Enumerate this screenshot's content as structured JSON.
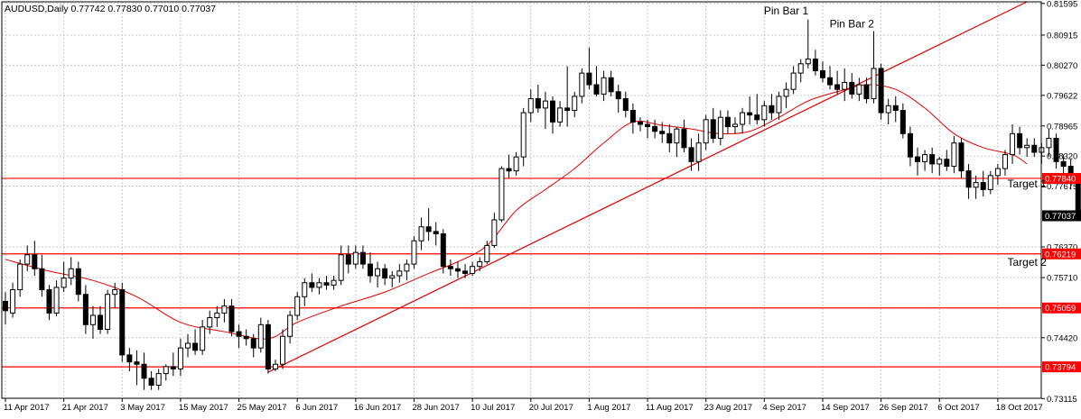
{
  "chart_data": {
    "type": "candlestick",
    "symbol_header": "AUDUSD,Daily  0.77742 0.77830 0.77010 0.77037",
    "title": "",
    "xlabel": "",
    "ylabel": "",
    "ylim": [
      0.7312,
      0.8163
    ],
    "grid": true,
    "y_ticks": [
      "0.81595",
      "0.80915",
      "0.80270",
      "0.79622",
      "0.78965",
      "0.78320",
      "0.77675",
      "0.76370",
      "0.75710",
      "0.74420",
      "0.73115"
    ],
    "x_tick_labels": [
      {
        "label": "11 Apr 2017",
        "index": 0
      },
      {
        "label": "21 Apr 2017",
        "index": 8
      },
      {
        "label": "3 May 2017",
        "index": 16
      },
      {
        "label": "15 May 2017",
        "index": 24
      },
      {
        "label": "25 May 2017",
        "index": 32
      },
      {
        "label": "6 Jun 2017",
        "index": 40
      },
      {
        "label": "16 Jun 2017",
        "index": 48
      },
      {
        "label": "28 Jun 2017",
        "index": 56
      },
      {
        "label": "10 Jul 2017",
        "index": 64
      },
      {
        "label": "20 Jul 2017",
        "index": 72
      },
      {
        "label": "1 Aug 2017",
        "index": 80
      },
      {
        "label": "11 Aug 2017",
        "index": 88
      },
      {
        "label": "23 Aug 2017",
        "index": 96
      },
      {
        "label": "4 Sep 2017",
        "index": 104
      },
      {
        "label": "14 Sep 2017",
        "index": 112
      },
      {
        "label": "26 Sep 2017",
        "index": 120
      },
      {
        "label": "6 Oct 2017",
        "index": 128
      },
      {
        "label": "18 Oct 2017",
        "index": 136
      }
    ],
    "levels": [
      {
        "value": 0.7784,
        "label": "0.77840"
      },
      {
        "value": 0.76219,
        "label": "0.76219"
      },
      {
        "value": 0.75059,
        "label": "0.75059"
      },
      {
        "value": 0.73794,
        "label": "0.73794"
      }
    ],
    "current_price": {
      "value": 0.77037,
      "label": "0.77037"
    },
    "trendline": {
      "start": {
        "index": 36,
        "price": 0.7368
      },
      "end": {
        "index": 140,
        "price": 0.8163
      }
    },
    "annotations": [
      {
        "text": "Pin Bar 1",
        "index": 107,
        "price": 0.8136
      },
      {
        "text": "Pin Bar 2",
        "index": 116,
        "price": 0.8108
      },
      {
        "text": "Target 1",
        "index": 140,
        "price": 0.7765
      },
      {
        "text": "Target 2",
        "index": 140,
        "price": 0.7596
      }
    ],
    "ma_anchors": [
      [
        0,
        0.761
      ],
      [
        6,
        0.7585
      ],
      [
        12,
        0.7565
      ],
      [
        18,
        0.753
      ],
      [
        24,
        0.7475
      ],
      [
        30,
        0.7455
      ],
      [
        36,
        0.744
      ],
      [
        40,
        0.7475
      ],
      [
        46,
        0.751
      ],
      [
        52,
        0.754
      ],
      [
        58,
        0.758
      ],
      [
        62,
        0.7605
      ],
      [
        66,
        0.764
      ],
      [
        70,
        0.7715
      ],
      [
        74,
        0.776
      ],
      [
        78,
        0.7805
      ],
      [
        82,
        0.786
      ],
      [
        86,
        0.7905
      ],
      [
        90,
        0.7898
      ],
      [
        94,
        0.789
      ],
      [
        98,
        0.788
      ],
      [
        102,
        0.7885
      ],
      [
        106,
        0.7915
      ],
      [
        110,
        0.795
      ],
      [
        114,
        0.797
      ],
      [
        118,
        0.7985
      ],
      [
        122,
        0.7975
      ],
      [
        126,
        0.7935
      ],
      [
        130,
        0.788
      ],
      [
        134,
        0.785
      ],
      [
        138,
        0.7835
      ],
      [
        140,
        0.7815
      ]
    ],
    "series": [
      {
        "o": 0.752,
        "h": 0.754,
        "l": 0.747,
        "c": 0.75
      },
      {
        "o": 0.7495,
        "h": 0.756,
        "l": 0.7485,
        "c": 0.7545
      },
      {
        "o": 0.7545,
        "h": 0.761,
        "l": 0.753,
        "c": 0.76
      },
      {
        "o": 0.76,
        "h": 0.764,
        "l": 0.7585,
        "c": 0.762
      },
      {
        "o": 0.762,
        "h": 0.765,
        "l": 0.7575,
        "c": 0.759
      },
      {
        "o": 0.759,
        "h": 0.762,
        "l": 0.753,
        "c": 0.7545
      },
      {
        "o": 0.7545,
        "h": 0.7555,
        "l": 0.748,
        "c": 0.7495
      },
      {
        "o": 0.7495,
        "h": 0.7565,
        "l": 0.7488,
        "c": 0.755
      },
      {
        "o": 0.755,
        "h": 0.7605,
        "l": 0.754,
        "c": 0.757
      },
      {
        "o": 0.757,
        "h": 0.7615,
        "l": 0.7555,
        "c": 0.759
      },
      {
        "o": 0.759,
        "h": 0.7605,
        "l": 0.752,
        "c": 0.7535
      },
      {
        "o": 0.7535,
        "h": 0.7555,
        "l": 0.745,
        "c": 0.747
      },
      {
        "o": 0.747,
        "h": 0.751,
        "l": 0.744,
        "c": 0.749
      },
      {
        "o": 0.749,
        "h": 0.751,
        "l": 0.745,
        "c": 0.746
      },
      {
        "o": 0.746,
        "h": 0.7545,
        "l": 0.745,
        "c": 0.7535
      },
      {
        "o": 0.7535,
        "h": 0.756,
        "l": 0.7505,
        "c": 0.7545
      },
      {
        "o": 0.7545,
        "h": 0.756,
        "l": 0.739,
        "c": 0.7405
      },
      {
        "o": 0.7405,
        "h": 0.742,
        "l": 0.737,
        "c": 0.739
      },
      {
        "o": 0.739,
        "h": 0.7415,
        "l": 0.734,
        "c": 0.7385
      },
      {
        "o": 0.7385,
        "h": 0.741,
        "l": 0.733,
        "c": 0.7355
      },
      {
        "o": 0.7355,
        "h": 0.737,
        "l": 0.733,
        "c": 0.734
      },
      {
        "o": 0.734,
        "h": 0.7375,
        "l": 0.733,
        "c": 0.7365
      },
      {
        "o": 0.7365,
        "h": 0.7385,
        "l": 0.735,
        "c": 0.738
      },
      {
        "o": 0.738,
        "h": 0.741,
        "l": 0.736,
        "c": 0.7375
      },
      {
        "o": 0.7375,
        "h": 0.744,
        "l": 0.736,
        "c": 0.742
      },
      {
        "o": 0.742,
        "h": 0.745,
        "l": 0.74,
        "c": 0.743
      },
      {
        "o": 0.743,
        "h": 0.746,
        "l": 0.7405,
        "c": 0.7415
      },
      {
        "o": 0.7415,
        "h": 0.748,
        "l": 0.7405,
        "c": 0.7465
      },
      {
        "o": 0.7465,
        "h": 0.75,
        "l": 0.745,
        "c": 0.7485
      },
      {
        "o": 0.7485,
        "h": 0.751,
        "l": 0.7465,
        "c": 0.7495
      },
      {
        "o": 0.7495,
        "h": 0.7525,
        "l": 0.7475,
        "c": 0.751
      },
      {
        "o": 0.751,
        "h": 0.7525,
        "l": 0.7445,
        "c": 0.7455
      },
      {
        "o": 0.7455,
        "h": 0.747,
        "l": 0.742,
        "c": 0.7445
      },
      {
        "o": 0.7445,
        "h": 0.746,
        "l": 0.7425,
        "c": 0.744
      },
      {
        "o": 0.744,
        "h": 0.745,
        "l": 0.74,
        "c": 0.742
      },
      {
        "o": 0.742,
        "h": 0.7485,
        "l": 0.741,
        "c": 0.747
      },
      {
        "o": 0.747,
        "h": 0.748,
        "l": 0.7365,
        "c": 0.7375
      },
      {
        "o": 0.7375,
        "h": 0.7395,
        "l": 0.737,
        "c": 0.7385
      },
      {
        "o": 0.7385,
        "h": 0.746,
        "l": 0.7375,
        "c": 0.7445
      },
      {
        "o": 0.7445,
        "h": 0.75,
        "l": 0.743,
        "c": 0.749
      },
      {
        "o": 0.749,
        "h": 0.754,
        "l": 0.748,
        "c": 0.753
      },
      {
        "o": 0.753,
        "h": 0.757,
        "l": 0.751,
        "c": 0.756
      },
      {
        "o": 0.756,
        "h": 0.758,
        "l": 0.754,
        "c": 0.755
      },
      {
        "o": 0.755,
        "h": 0.757,
        "l": 0.7535,
        "c": 0.756
      },
      {
        "o": 0.756,
        "h": 0.7575,
        "l": 0.7545,
        "c": 0.7555
      },
      {
        "o": 0.7555,
        "h": 0.7575,
        "l": 0.7545,
        "c": 0.7565
      },
      {
        "o": 0.7565,
        "h": 0.764,
        "l": 0.7555,
        "c": 0.762
      },
      {
        "o": 0.762,
        "h": 0.764,
        "l": 0.758,
        "c": 0.76
      },
      {
        "o": 0.76,
        "h": 0.764,
        "l": 0.759,
        "c": 0.7625
      },
      {
        "o": 0.7625,
        "h": 0.764,
        "l": 0.759,
        "c": 0.76
      },
      {
        "o": 0.76,
        "h": 0.7625,
        "l": 0.756,
        "c": 0.7575
      },
      {
        "o": 0.7575,
        "h": 0.7605,
        "l": 0.755,
        "c": 0.759
      },
      {
        "o": 0.759,
        "h": 0.76,
        "l": 0.7555,
        "c": 0.757
      },
      {
        "o": 0.757,
        "h": 0.7585,
        "l": 0.755,
        "c": 0.7575
      },
      {
        "o": 0.7575,
        "h": 0.76,
        "l": 0.756,
        "c": 0.7585
      },
      {
        "o": 0.7585,
        "h": 0.761,
        "l": 0.7565,
        "c": 0.76
      },
      {
        "o": 0.76,
        "h": 0.766,
        "l": 0.759,
        "c": 0.765
      },
      {
        "o": 0.765,
        "h": 0.77,
        "l": 0.763,
        "c": 0.768
      },
      {
        "o": 0.768,
        "h": 0.772,
        "l": 0.765,
        "c": 0.767
      },
      {
        "o": 0.767,
        "h": 0.769,
        "l": 0.764,
        "c": 0.7665
      },
      {
        "o": 0.7665,
        "h": 0.7675,
        "l": 0.758,
        "c": 0.7595
      },
      {
        "o": 0.7595,
        "h": 0.761,
        "l": 0.7575,
        "c": 0.759
      },
      {
        "o": 0.759,
        "h": 0.7605,
        "l": 0.757,
        "c": 0.7585
      },
      {
        "o": 0.7585,
        "h": 0.76,
        "l": 0.757,
        "c": 0.758
      },
      {
        "o": 0.758,
        "h": 0.7605,
        "l": 0.7575,
        "c": 0.7595
      },
      {
        "o": 0.7595,
        "h": 0.7615,
        "l": 0.7585,
        "c": 0.7605
      },
      {
        "o": 0.7605,
        "h": 0.765,
        "l": 0.76,
        "c": 0.764
      },
      {
        "o": 0.764,
        "h": 0.771,
        "l": 0.7635,
        "c": 0.7695
      },
      {
        "o": 0.7695,
        "h": 0.781,
        "l": 0.769,
        "c": 0.7805
      },
      {
        "o": 0.7805,
        "h": 0.7835,
        "l": 0.7785,
        "c": 0.78
      },
      {
        "o": 0.78,
        "h": 0.784,
        "l": 0.779,
        "c": 0.783
      },
      {
        "o": 0.783,
        "h": 0.7935,
        "l": 0.781,
        "c": 0.7925
      },
      {
        "o": 0.7925,
        "h": 0.7975,
        "l": 0.7905,
        "c": 0.7955
      },
      {
        "o": 0.7955,
        "h": 0.7985,
        "l": 0.7925,
        "c": 0.7935
      },
      {
        "o": 0.7935,
        "h": 0.797,
        "l": 0.789,
        "c": 0.795
      },
      {
        "o": 0.795,
        "h": 0.796,
        "l": 0.788,
        "c": 0.7905
      },
      {
        "o": 0.7905,
        "h": 0.795,
        "l": 0.7895,
        "c": 0.7935
      },
      {
        "o": 0.7935,
        "h": 0.8025,
        "l": 0.7895,
        "c": 0.793
      },
      {
        "o": 0.793,
        "h": 0.797,
        "l": 0.7915,
        "c": 0.796
      },
      {
        "o": 0.796,
        "h": 0.802,
        "l": 0.7945,
        "c": 0.801
      },
      {
        "o": 0.801,
        "h": 0.8065,
        "l": 0.7975,
        "c": 0.7985
      },
      {
        "o": 0.7985,
        "h": 0.8025,
        "l": 0.796,
        "c": 0.7965
      },
      {
        "o": 0.7965,
        "h": 0.8015,
        "l": 0.795,
        "c": 0.8
      },
      {
        "o": 0.8,
        "h": 0.8015,
        "l": 0.796,
        "c": 0.797
      },
      {
        "o": 0.797,
        "h": 0.7985,
        "l": 0.7925,
        "c": 0.7955
      },
      {
        "o": 0.7955,
        "h": 0.797,
        "l": 0.7915,
        "c": 0.793
      },
      {
        "o": 0.793,
        "h": 0.7945,
        "l": 0.788,
        "c": 0.7905
      },
      {
        "o": 0.7905,
        "h": 0.7915,
        "l": 0.7885,
        "c": 0.79
      },
      {
        "o": 0.79,
        "h": 0.791,
        "l": 0.787,
        "c": 0.7895
      },
      {
        "o": 0.7895,
        "h": 0.791,
        "l": 0.787,
        "c": 0.7885
      },
      {
        "o": 0.7885,
        "h": 0.7905,
        "l": 0.786,
        "c": 0.788
      },
      {
        "o": 0.788,
        "h": 0.79,
        "l": 0.784,
        "c": 0.786
      },
      {
        "o": 0.786,
        "h": 0.7895,
        "l": 0.783,
        "c": 0.789
      },
      {
        "o": 0.789,
        "h": 0.791,
        "l": 0.784,
        "c": 0.785
      },
      {
        "o": 0.785,
        "h": 0.787,
        "l": 0.78,
        "c": 0.782
      },
      {
        "o": 0.782,
        "h": 0.788,
        "l": 0.78,
        "c": 0.786
      },
      {
        "o": 0.786,
        "h": 0.792,
        "l": 0.7845,
        "c": 0.791
      },
      {
        "o": 0.791,
        "h": 0.7935,
        "l": 0.786,
        "c": 0.787
      },
      {
        "o": 0.787,
        "h": 0.793,
        "l": 0.7855,
        "c": 0.7915
      },
      {
        "o": 0.7915,
        "h": 0.793,
        "l": 0.788,
        "c": 0.7895
      },
      {
        "o": 0.7895,
        "h": 0.7915,
        "l": 0.788,
        "c": 0.79
      },
      {
        "o": 0.79,
        "h": 0.7935,
        "l": 0.788,
        "c": 0.7925
      },
      {
        "o": 0.7925,
        "h": 0.796,
        "l": 0.79,
        "c": 0.792
      },
      {
        "o": 0.792,
        "h": 0.7965,
        "l": 0.79,
        "c": 0.791
      },
      {
        "o": 0.791,
        "h": 0.795,
        "l": 0.7895,
        "c": 0.794
      },
      {
        "o": 0.794,
        "h": 0.7965,
        "l": 0.791,
        "c": 0.7925
      },
      {
        "o": 0.7925,
        "h": 0.797,
        "l": 0.791,
        "c": 0.796
      },
      {
        "o": 0.796,
        "h": 0.799,
        "l": 0.7935,
        "c": 0.7975
      },
      {
        "o": 0.7975,
        "h": 0.8025,
        "l": 0.7965,
        "c": 0.801
      },
      {
        "o": 0.801,
        "h": 0.804,
        "l": 0.799,
        "c": 0.803
      },
      {
        "o": 0.803,
        "h": 0.8125,
        "l": 0.802,
        "c": 0.804
      },
      {
        "o": 0.804,
        "h": 0.806,
        "l": 0.8005,
        "c": 0.8015
      },
      {
        "o": 0.8015,
        "h": 0.8035,
        "l": 0.799,
        "c": 0.8
      },
      {
        "o": 0.8,
        "h": 0.8025,
        "l": 0.7975,
        "c": 0.7985
      },
      {
        "o": 0.7985,
        "h": 0.8015,
        "l": 0.7965,
        "c": 0.7975
      },
      {
        "o": 0.7975,
        "h": 0.802,
        "l": 0.795,
        "c": 0.799
      },
      {
        "o": 0.799,
        "h": 0.801,
        "l": 0.7955,
        "c": 0.7965
      },
      {
        "o": 0.7965,
        "h": 0.8,
        "l": 0.795,
        "c": 0.7985
      },
      {
        "o": 0.7985,
        "h": 0.8,
        "l": 0.7945,
        "c": 0.7955
      },
      {
        "o": 0.7955,
        "h": 0.81,
        "l": 0.7945,
        "c": 0.802
      },
      {
        "o": 0.802,
        "h": 0.803,
        "l": 0.791,
        "c": 0.7925
      },
      {
        "o": 0.7925,
        "h": 0.7955,
        "l": 0.79,
        "c": 0.794
      },
      {
        "o": 0.794,
        "h": 0.796,
        "l": 0.7905,
        "c": 0.793
      },
      {
        "o": 0.793,
        "h": 0.7945,
        "l": 0.787,
        "c": 0.788
      },
      {
        "o": 0.788,
        "h": 0.7895,
        "l": 0.781,
        "c": 0.783
      },
      {
        "o": 0.783,
        "h": 0.785,
        "l": 0.779,
        "c": 0.782
      },
      {
        "o": 0.782,
        "h": 0.7845,
        "l": 0.78,
        "c": 0.7835
      },
      {
        "o": 0.7835,
        "h": 0.785,
        "l": 0.7795,
        "c": 0.7815
      },
      {
        "o": 0.7815,
        "h": 0.783,
        "l": 0.779,
        "c": 0.7825
      },
      {
        "o": 0.7825,
        "h": 0.7845,
        "l": 0.78,
        "c": 0.781
      },
      {
        "o": 0.781,
        "h": 0.7875,
        "l": 0.7795,
        "c": 0.786
      },
      {
        "o": 0.786,
        "h": 0.787,
        "l": 0.7785,
        "c": 0.78
      },
      {
        "o": 0.78,
        "h": 0.7815,
        "l": 0.774,
        "c": 0.7765
      },
      {
        "o": 0.7765,
        "h": 0.779,
        "l": 0.774,
        "c": 0.7775
      },
      {
        "o": 0.7775,
        "h": 0.78,
        "l": 0.7745,
        "c": 0.776
      },
      {
        "o": 0.776,
        "h": 0.78,
        "l": 0.775,
        "c": 0.779
      },
      {
        "o": 0.779,
        "h": 0.7815,
        "l": 0.777,
        "c": 0.7805
      },
      {
        "o": 0.7805,
        "h": 0.7845,
        "l": 0.779,
        "c": 0.7835
      },
      {
        "o": 0.7835,
        "h": 0.79,
        "l": 0.7815,
        "c": 0.788
      },
      {
        "o": 0.788,
        "h": 0.7895,
        "l": 0.7835,
        "c": 0.785
      },
      {
        "o": 0.785,
        "h": 0.787,
        "l": 0.783,
        "c": 0.7855
      },
      {
        "o": 0.7855,
        "h": 0.787,
        "l": 0.783,
        "c": 0.784
      },
      {
        "o": 0.784,
        "h": 0.786,
        "l": 0.7815,
        "c": 0.785
      },
      {
        "o": 0.785,
        "h": 0.789,
        "l": 0.783,
        "c": 0.787
      },
      {
        "o": 0.787,
        "h": 0.788,
        "l": 0.7805,
        "c": 0.782
      },
      {
        "o": 0.782,
        "h": 0.7835,
        "l": 0.7795,
        "c": 0.781
      },
      {
        "o": 0.781,
        "h": 0.7825,
        "l": 0.776,
        "c": 0.7774
      },
      {
        "o": 0.7774,
        "h": 0.7783,
        "l": 0.7701,
        "c": 0.77037
      }
    ]
  },
  "colors": {
    "background": "#ffffff",
    "grid": "#c8c8c8",
    "candle": "#000000",
    "level_line": "#ff0000",
    "ma_line": "#e00000",
    "trendline": "#e00000",
    "label_text": "#000000"
  }
}
